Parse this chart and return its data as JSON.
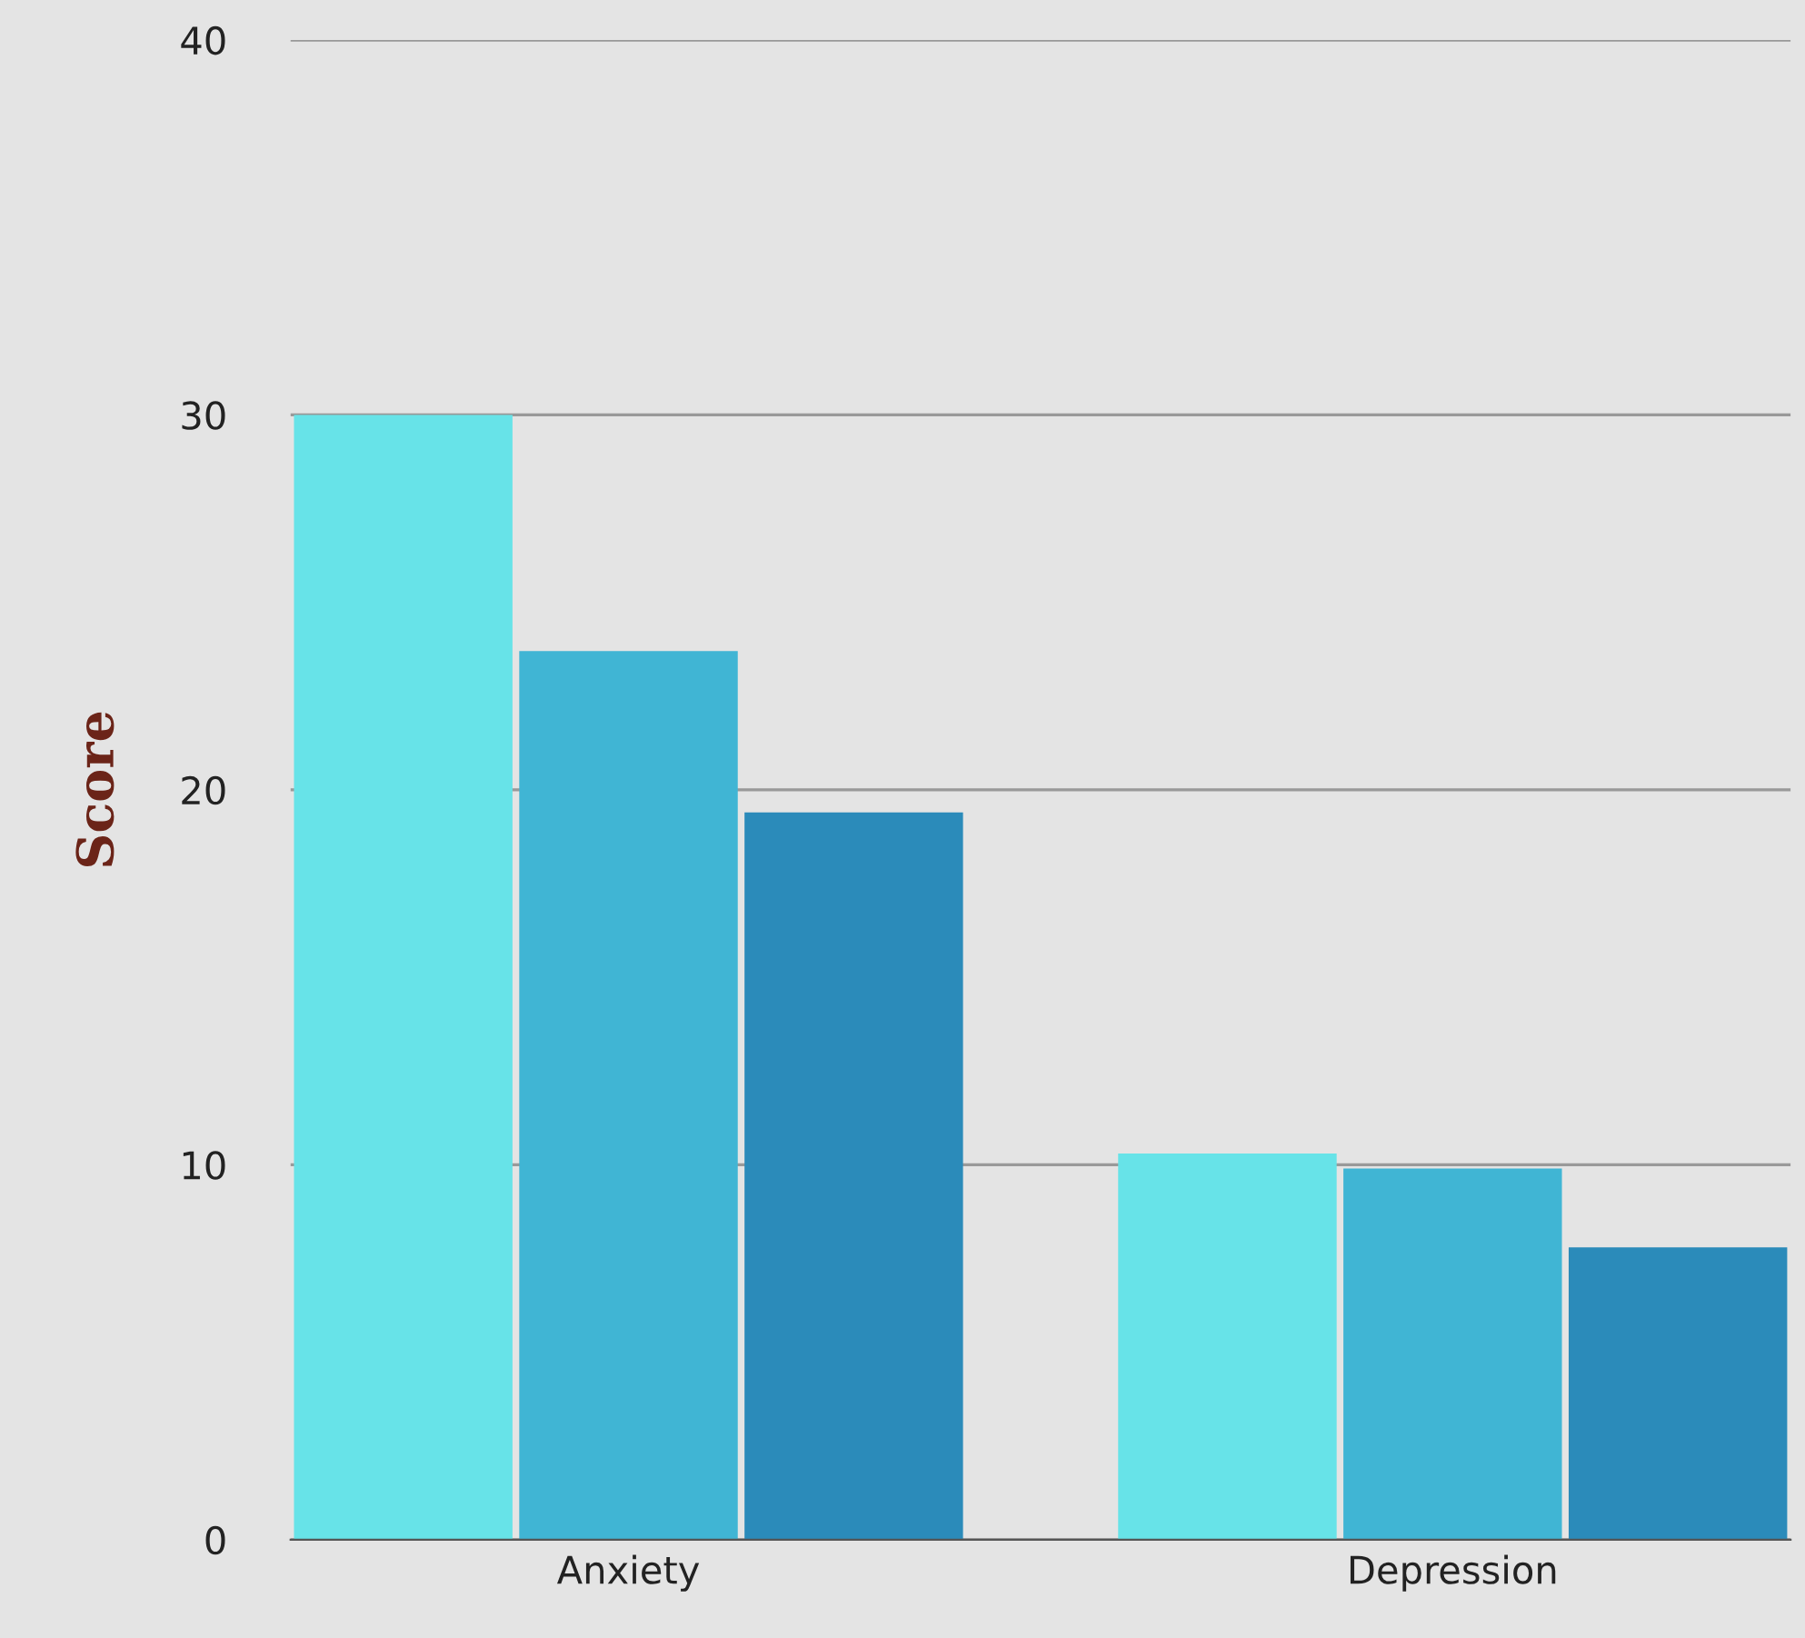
{
  "chart_data": {
    "type": "bar",
    "ylabel": "Score",
    "categories": [
      "Anxiety",
      "Depression"
    ],
    "series": [
      {
        "color": "#67e3e8",
        "values": [
          30,
          10.3
        ]
      },
      {
        "color": "#40b5d4",
        "values": [
          23.7,
          9.9
        ]
      },
      {
        "color": "#2b8bba",
        "values": [
          19.4,
          7.8
        ]
      }
    ],
    "ylim": [
      0,
      40
    ],
    "yticks": [
      0,
      10,
      20,
      30,
      40
    ],
    "grid": "y",
    "legend": false
  }
}
